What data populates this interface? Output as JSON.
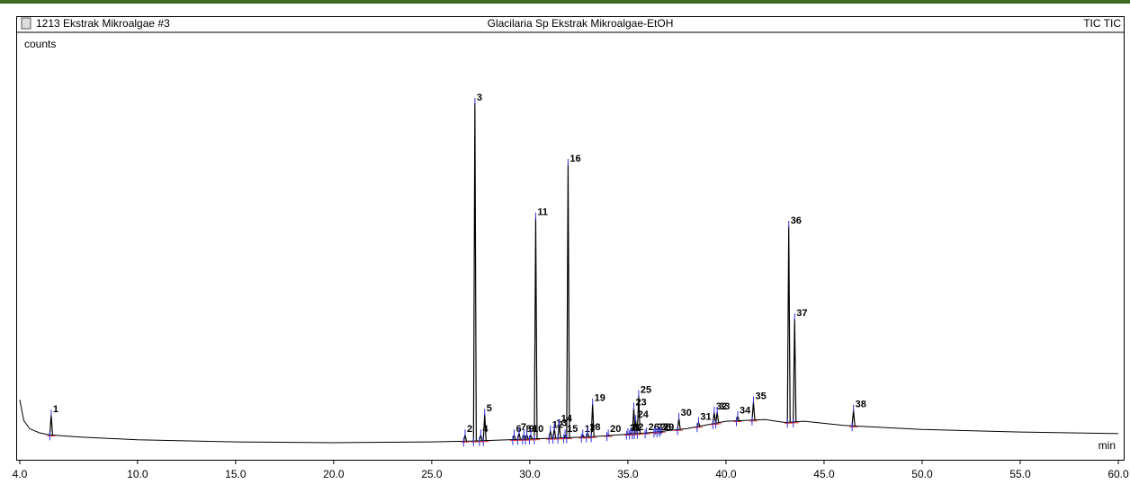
{
  "chart_data": {
    "type": "line",
    "sample": "1213 Ekstrak Mikroalgae #3",
    "title": "Glacilaria Sp Ekstrak Mikroalgae-EtOH",
    "trace": "TIC TIC",
    "y_label": "counts",
    "x_label": "min",
    "color": "#000000",
    "xlim": [
      4,
      60
    ],
    "xticks": [
      {
        "value": 4,
        "label": "4.0"
      },
      {
        "value": 10,
        "label": "10.0"
      },
      {
        "value": 15,
        "label": "15.0"
      },
      {
        "value": 20,
        "label": "20.0"
      },
      {
        "value": 25,
        "label": "25.0"
      },
      {
        "value": 30,
        "label": "30.0"
      },
      {
        "value": 35,
        "label": "35.0"
      },
      {
        "value": 40,
        "label": "40.0"
      },
      {
        "value": 45,
        "label": "45.0"
      },
      {
        "value": 50,
        "label": "50.0"
      },
      {
        "value": 55,
        "label": "55.0"
      },
      {
        "value": 60,
        "label": "60.0"
      }
    ],
    "ylim": [
      0,
      100
    ],
    "x": [
      4.0,
      4.2,
      4.5,
      5.0,
      5.5,
      7,
      10,
      15,
      20,
      25,
      27,
      30,
      33,
      36,
      38,
      40,
      42,
      43,
      44,
      46,
      50,
      55,
      60
    ],
    "values": [
      13,
      8,
      6,
      5,
      4.5,
      4,
      3.3,
      2.8,
      2.6,
      2.8,
      3,
      3.5,
      4,
      5,
      6,
      7.8,
      8.2,
      7.5,
      7.8,
      6.8,
      5.8,
      5.2,
      4.8
    ],
    "peaks": [
      {
        "label": "1",
        "x": 5.6,
        "y": 9.3
      },
      {
        "label": "2",
        "x": 26.7,
        "y": 4.5
      },
      {
        "label": "3",
        "x": 27.2,
        "y": 84.8
      },
      {
        "label": "4",
        "x": 27.5,
        "y": 4.5
      },
      {
        "label": "5",
        "x": 27.7,
        "y": 9.5
      },
      {
        "label": "6",
        "x": 29.2,
        "y": 4.5
      },
      {
        "label": "7",
        "x": 29.45,
        "y": 5
      },
      {
        "label": "8",
        "x": 29.7,
        "y": 4.5
      },
      {
        "label": "9",
        "x": 29.85,
        "y": 4.5
      },
      {
        "label": "10",
        "x": 30.05,
        "y": 4.5
      },
      {
        "label": "11",
        "x": 30.3,
        "y": 57
      },
      {
        "label": "12",
        "x": 31.05,
        "y": 5.5
      },
      {
        "label": "13",
        "x": 31.25,
        "y": 6
      },
      {
        "label": "14",
        "x": 31.5,
        "y": 7
      },
      {
        "label": "15",
        "x": 31.8,
        "y": 4.5
      },
      {
        "label": "16",
        "x": 31.95,
        "y": 70
      },
      {
        "label": "17",
        "x": 32.7,
        "y": 4.5
      },
      {
        "label": "18",
        "x": 32.95,
        "y": 5
      },
      {
        "label": "19",
        "x": 33.2,
        "y": 12
      },
      {
        "label": "20",
        "x": 34.0,
        "y": 4.5
      },
      {
        "label": "21",
        "x": 35.0,
        "y": 4.8
      },
      {
        "label": "22",
        "x": 35.15,
        "y": 5
      },
      {
        "label": "23",
        "x": 35.3,
        "y": 11
      },
      {
        "label": "24",
        "x": 35.4,
        "y": 8
      },
      {
        "label": "25",
        "x": 35.55,
        "y": 14
      },
      {
        "label": "26",
        "x": 35.95,
        "y": 5
      },
      {
        "label": "27",
        "x": 36.4,
        "y": 5
      },
      {
        "label": "28",
        "x": 36.55,
        "y": 5
      },
      {
        "label": "29",
        "x": 36.7,
        "y": 5
      },
      {
        "label": "30",
        "x": 37.6,
        "y": 8.5
      },
      {
        "label": "31",
        "x": 38.6,
        "y": 7.5
      },
      {
        "label": "32",
        "x": 39.4,
        "y": 10
      },
      {
        "label": "33",
        "x": 39.55,
        "y": 10
      },
      {
        "label": "34",
        "x": 40.6,
        "y": 9
      },
      {
        "label": "35",
        "x": 41.4,
        "y": 12.5
      },
      {
        "label": "36",
        "x": 43.2,
        "y": 55
      },
      {
        "label": "37",
        "x": 43.5,
        "y": 32.6
      },
      {
        "label": "38",
        "x": 46.5,
        "y": 10.5
      }
    ]
  }
}
